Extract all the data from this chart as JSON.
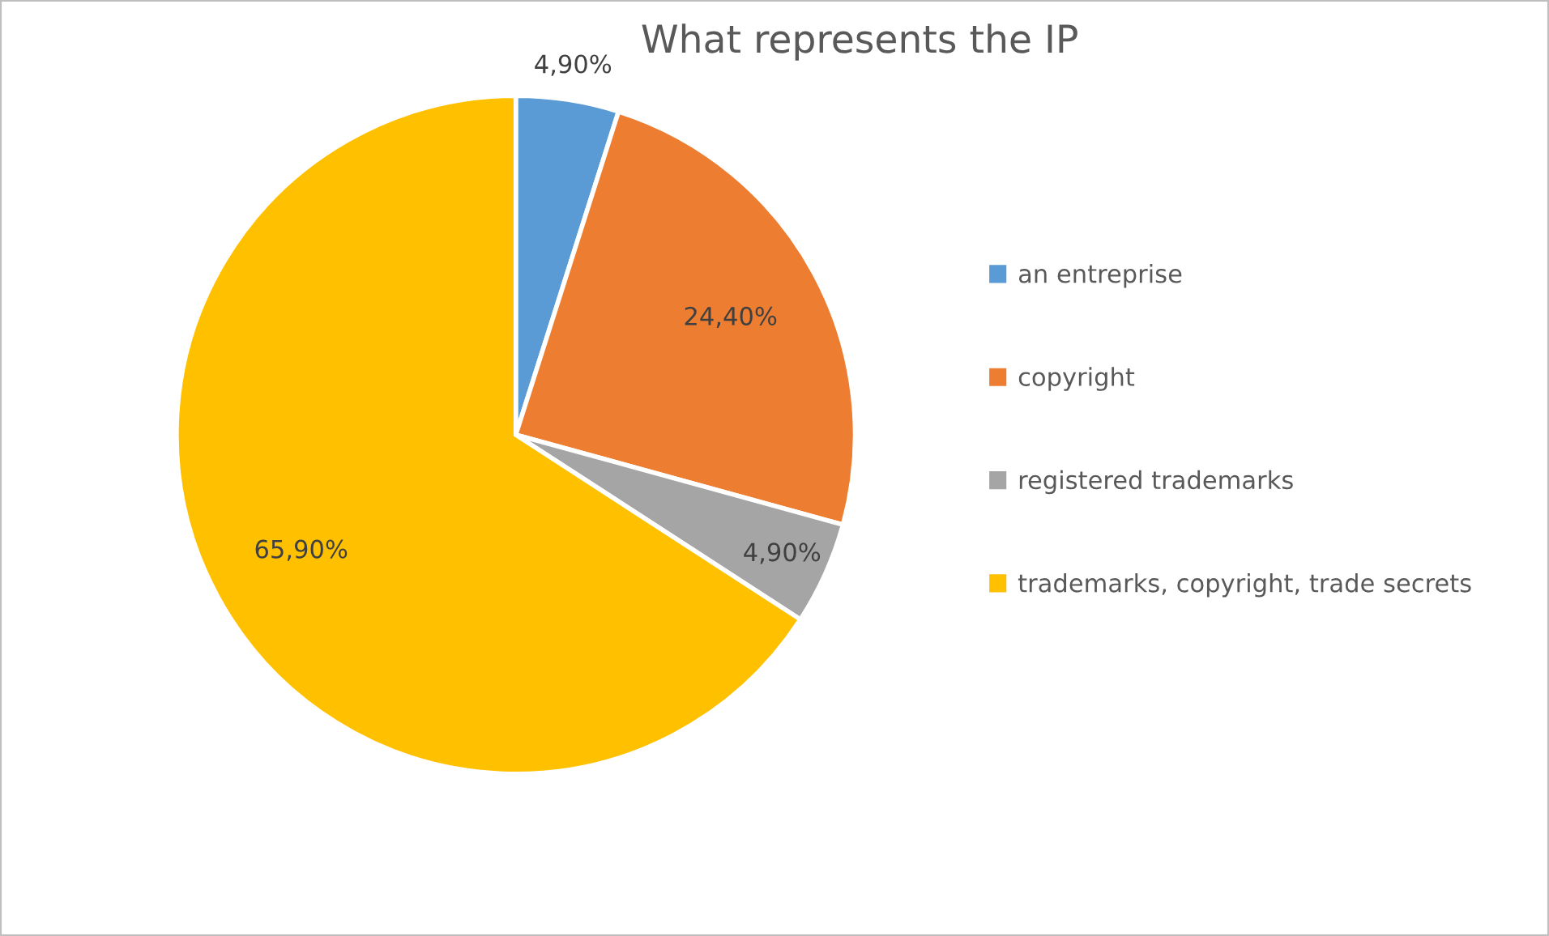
{
  "chart_data": {
    "type": "pie",
    "title": "What represents the IP",
    "categories": [
      "an entreprise",
      "copyright",
      "registered trademarks",
      "trademarks, copyright, trade secrets"
    ],
    "values": [
      4.9,
      24.4,
      4.9,
      65.9
    ],
    "value_labels": [
      "4,90%",
      "24,40%",
      "4,90%",
      "65,90%"
    ],
    "colors": [
      "#5b9bd5",
      "#ed7d31",
      "#a5a5a5",
      "#ffc000"
    ],
    "legend": "right"
  }
}
